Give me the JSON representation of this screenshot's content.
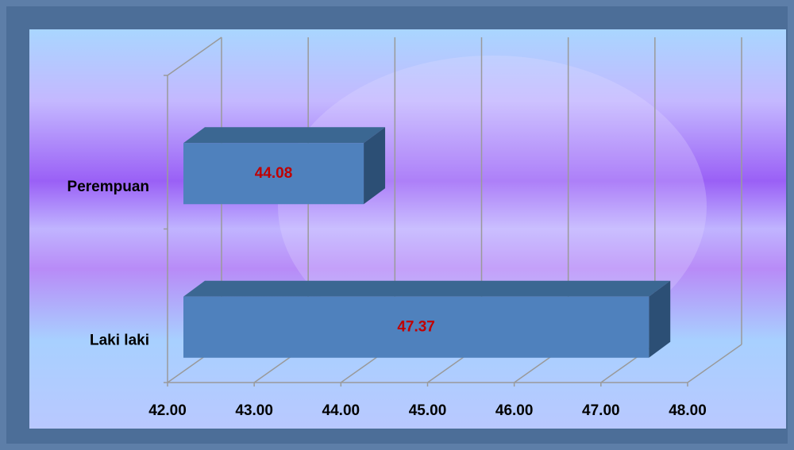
{
  "chart_data": {
    "type": "bar3d",
    "orientation": "horizontal",
    "categories": [
      "Perempuan",
      "Laki laki"
    ],
    "values": [
      44.08,
      47.37
    ],
    "color": "#4f81bd",
    "label_color": "#c00000",
    "xlim": [
      42,
      48
    ],
    "xticks": [
      {
        "value": 42,
        "label": "42.00"
      },
      {
        "value": 43,
        "label": "43.00"
      },
      {
        "value": 44,
        "label": "44.00"
      },
      {
        "value": 45,
        "label": "45.00"
      },
      {
        "value": 46,
        "label": "46.00"
      },
      {
        "value": 47,
        "label": "47.00"
      },
      {
        "value": 48,
        "label": "48.00"
      }
    ],
    "grid": true
  }
}
